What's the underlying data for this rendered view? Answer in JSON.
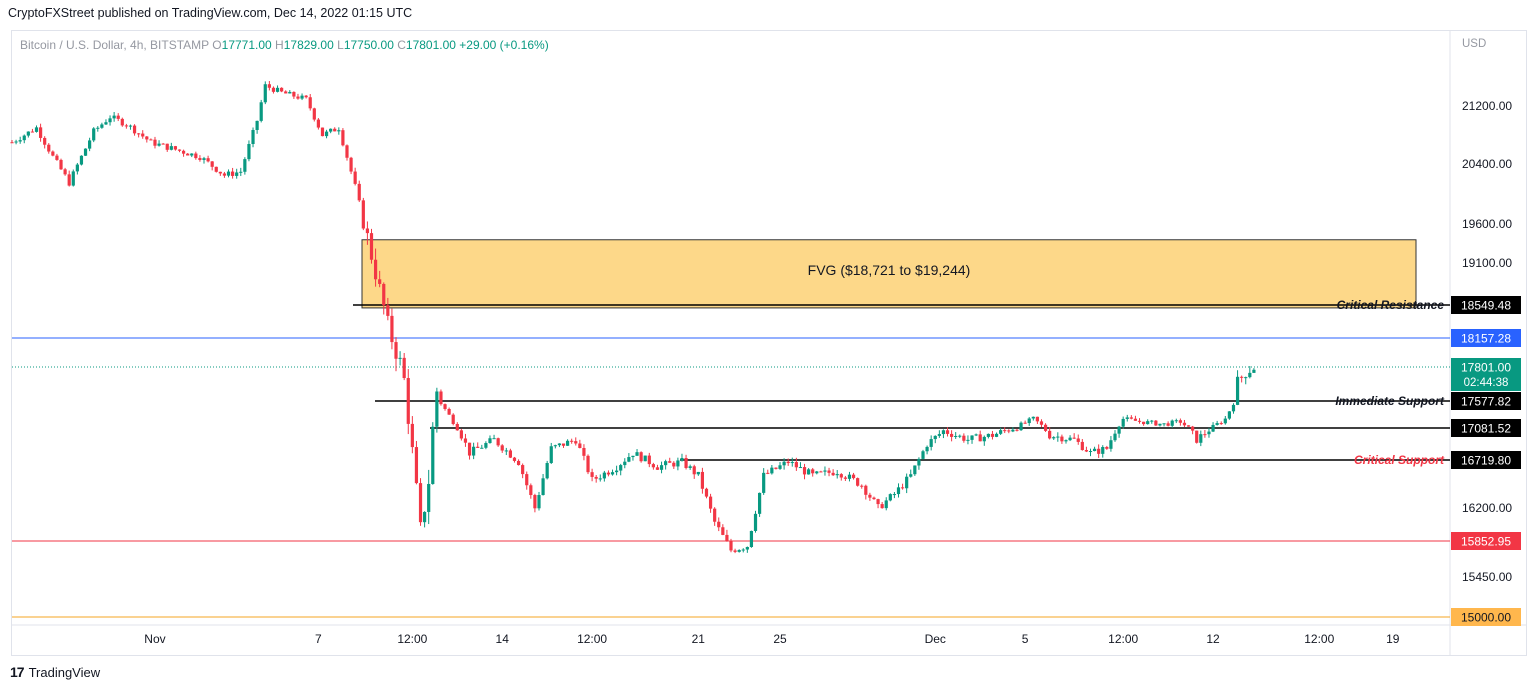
{
  "header": {
    "publisher_line": "CryptoFXStreet published on TradingView.com, Dec 14, 2022 01:15 UTC"
  },
  "legend": {
    "symbol": "Bitcoin / U.S. Dollar, 4h, BITSTAMP",
    "o_label": "O",
    "o_value": "17771.00",
    "h_label": "H",
    "h_value": "17829.00",
    "l_label": "L",
    "l_value": "17750.00",
    "c_label": "C",
    "c_value": "17801.00",
    "change": "+29.00 (+0.16%)"
  },
  "footer": {
    "brand": "TradingView",
    "logo_glyph": "17"
  },
  "chart_data": {
    "type": "candlestick",
    "currency": "USD",
    "y_ticks": [
      "21200.00",
      "20400.00",
      "19600.00",
      "19100.00",
      "16200.00",
      "15450.00"
    ],
    "y_tick_values": [
      21200,
      20400,
      19600,
      19100,
      16200,
      15450
    ],
    "x_ticks": [
      "Nov",
      "7",
      "12:00",
      "14",
      "12:00",
      "21",
      "25",
      "Dec",
      "5",
      "12:00",
      "12",
      "12:00",
      "19"
    ],
    "fvg": {
      "label": "FVG ($18,721 to $19,244)",
      "low": 18721,
      "high": 19244,
      "color": "#fdd889"
    },
    "levels": [
      {
        "name": "critical-resistance",
        "value": 18549.48,
        "label": "18549.48",
        "annotation": "Critical Resistance",
        "color": "#000000",
        "label_bg": "#000000",
        "annotation_color": "#131722"
      },
      {
        "name": "blue-line",
        "value": 18157.28,
        "label": "18157.28",
        "annotation": "",
        "color": "#2962ff",
        "label_bg": "#2962ff"
      },
      {
        "name": "immediate-support",
        "value": 17577.82,
        "label": "17577.82",
        "annotation": "Immediate Support",
        "color": "#000000",
        "label_bg": "#000000",
        "annotation_color": "#131722"
      },
      {
        "name": "level-17081",
        "value": 17081.52,
        "label": "17081.52",
        "annotation": "",
        "color": "#000000",
        "label_bg": "#000000"
      },
      {
        "name": "critical-support",
        "value": 16719.8,
        "label": "16719.80",
        "annotation": "Critical Support",
        "color": "#000000",
        "label_bg": "#000000",
        "annotation_color": "#f23645"
      },
      {
        "name": "red-line",
        "value": 15852.95,
        "label": "15852.95",
        "annotation": "",
        "color": "#f23645",
        "label_bg": "#f23645"
      },
      {
        "name": "orange-line",
        "value": 15000.0,
        "label": "15000.00",
        "annotation": "",
        "color": "#f5a623",
        "label_bg": "#ffb74d"
      }
    ],
    "current_price": {
      "value": 17801.0,
      "label": "17801.00",
      "countdown": "02:44:38",
      "color": "#089981"
    },
    "colors": {
      "up": "#089981",
      "down": "#f23645"
    },
    "close_path": [
      {
        "t": 0,
        "v": 20700
      },
      {
        "t": 6,
        "v": 20900
      },
      {
        "t": 10,
        "v": 20500
      },
      {
        "t": 14,
        "v": 20150
      },
      {
        "t": 20,
        "v": 20850
      },
      {
        "t": 24,
        "v": 21050
      },
      {
        "t": 28,
        "v": 20950
      },
      {
        "t": 34,
        "v": 20700
      },
      {
        "t": 40,
        "v": 20600
      },
      {
        "t": 46,
        "v": 20500
      },
      {
        "t": 52,
        "v": 20250
      },
      {
        "t": 56,
        "v": 20300
      },
      {
        "t": 60,
        "v": 21000
      },
      {
        "t": 62,
        "v": 21500
      },
      {
        "t": 66,
        "v": 21400
      },
      {
        "t": 72,
        "v": 21300
      },
      {
        "t": 76,
        "v": 20800
      },
      {
        "t": 80,
        "v": 20900
      },
      {
        "t": 84,
        "v": 20100
      },
      {
        "t": 88,
        "v": 19200
      },
      {
        "t": 92,
        "v": 18300
      },
      {
        "t": 96,
        "v": 17700
      },
      {
        "t": 98,
        "v": 16800
      },
      {
        "t": 100,
        "v": 15950
      },
      {
        "t": 102,
        "v": 16500
      },
      {
        "t": 104,
        "v": 17650
      },
      {
        "t": 108,
        "v": 17200
      },
      {
        "t": 112,
        "v": 16800
      },
      {
        "t": 118,
        "v": 16950
      },
      {
        "t": 124,
        "v": 16700
      },
      {
        "t": 128,
        "v": 16200
      },
      {
        "t": 132,
        "v": 16850
      },
      {
        "t": 138,
        "v": 16950
      },
      {
        "t": 142,
        "v": 16500
      },
      {
        "t": 148,
        "v": 16650
      },
      {
        "t": 152,
        "v": 16800
      },
      {
        "t": 158,
        "v": 16650
      },
      {
        "t": 164,
        "v": 16700
      },
      {
        "t": 168,
        "v": 16550
      },
      {
        "t": 172,
        "v": 16050
      },
      {
        "t": 176,
        "v": 15750
      },
      {
        "t": 180,
        "v": 15800
      },
      {
        "t": 184,
        "v": 16550
      },
      {
        "t": 190,
        "v": 16700
      },
      {
        "t": 196,
        "v": 16550
      },
      {
        "t": 202,
        "v": 16600
      },
      {
        "t": 208,
        "v": 16450
      },
      {
        "t": 212,
        "v": 16200
      },
      {
        "t": 216,
        "v": 16350
      },
      {
        "t": 220,
        "v": 16550
      },
      {
        "t": 224,
        "v": 16900
      },
      {
        "t": 228,
        "v": 17050
      },
      {
        "t": 234,
        "v": 16950
      },
      {
        "t": 240,
        "v": 17000
      },
      {
        "t": 246,
        "v": 17100
      },
      {
        "t": 250,
        "v": 17250
      },
      {
        "t": 254,
        "v": 17000
      },
      {
        "t": 260,
        "v": 16950
      },
      {
        "t": 264,
        "v": 16800
      },
      {
        "t": 268,
        "v": 16850
      },
      {
        "t": 272,
        "v": 17250
      },
      {
        "t": 276,
        "v": 17200
      },
      {
        "t": 282,
        "v": 17150
      },
      {
        "t": 286,
        "v": 17200
      },
      {
        "t": 290,
        "v": 16950
      },
      {
        "t": 294,
        "v": 17100
      },
      {
        "t": 297,
        "v": 17250
      },
      {
        "t": 300,
        "v": 17700
      },
      {
        "t": 302,
        "v": 17770
      },
      {
        "t": 304,
        "v": 17801
      }
    ],
    "x_range": [
      0,
      352
    ],
    "y_range": [
      14950,
      22250
    ]
  }
}
